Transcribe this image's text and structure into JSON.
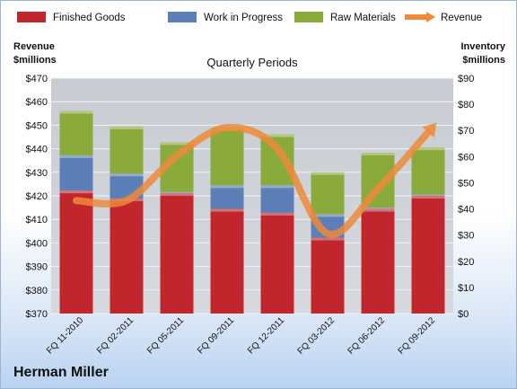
{
  "company": "Herman Miller",
  "chart_data": {
    "type": "bar",
    "title": "Quarterly Periods",
    "categories": [
      "FQ 11-2010",
      "FQ 02-2011",
      "FQ 05-2011",
      "FQ 09-2011",
      "FQ 12-2011",
      "FQ 03-2012",
      "FQ 06-2012",
      "FQ 09-2012"
    ],
    "stacked": true,
    "series": [
      {
        "name": "Finished Goods",
        "axis": "right",
        "color": "#c0262c",
        "values": [
          47,
          44,
          46,
          40,
          38.5,
          29,
          40,
          45
        ]
      },
      {
        "name": "Work in Progress",
        "axis": "right",
        "color": "#5b7fb6",
        "values": [
          13.5,
          9.5,
          0.5,
          9,
          10.5,
          9,
          0.5,
          0.5
        ]
      },
      {
        "name": "Raw Materials",
        "axis": "right",
        "color": "#8aaa3c",
        "values": [
          17,
          18,
          19,
          22,
          19.5,
          16,
          21,
          18
        ]
      },
      {
        "name": "Revenue",
        "type": "line",
        "axis": "left",
        "color": "#ee8a3a",
        "values": [
          418,
          418,
          437,
          449,
          440,
          404,
          423,
          447
        ]
      }
    ],
    "y_left": {
      "label_line1": "Revenue",
      "label_line2": "$millions",
      "min": 370,
      "max": 470,
      "step": 10,
      "prefix": "$"
    },
    "y_right": {
      "label_line1": "Inventory",
      "label_line2": "$millions",
      "min": 0,
      "max": 90,
      "step": 10,
      "prefix": "$"
    },
    "grid": true,
    "legend_position": "top"
  }
}
